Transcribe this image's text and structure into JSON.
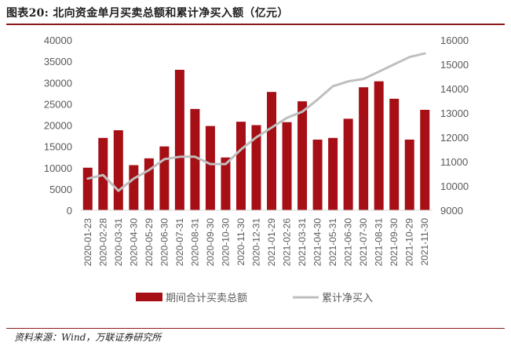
{
  "figure": {
    "title": "图表20:  北向资金单月买卖总额和累计净买入额（亿元）",
    "source": "资料来源：Wind，万联证券研究所"
  },
  "chart_data": {
    "type": "bar",
    "categories": [
      "2020-01-23",
      "2020-02-28",
      "2020-03-31",
      "2020-04-30",
      "2020-05-29",
      "2020-06-30",
      "2020-07-31",
      "2020-08-31",
      "2020-09-30",
      "2020-10-30",
      "2020-11-30",
      "2020-12-31",
      "2021-01-29",
      "2021-02-26",
      "2021-03-31",
      "2021-04-30",
      "2021-05-31",
      "2021-06-30",
      "2021-07-30",
      "2021-08-31",
      "2021-09-30",
      "2021-10-29",
      "2021-11-30"
    ],
    "series": [
      {
        "name": "期间合计买卖总额",
        "type": "bar",
        "axis": "left",
        "color": "#a50f15",
        "values": [
          10000,
          17000,
          18800,
          10600,
          12200,
          15000,
          33000,
          23800,
          19800,
          12400,
          20800,
          20000,
          27800,
          20700,
          25600,
          16600,
          17000,
          21500,
          28900,
          30300,
          26200,
          16600,
          23600
        ]
      },
      {
        "name": "累计净买入",
        "type": "line",
        "axis": "right",
        "color": "#bfbfbf",
        "values": [
          10300,
          10450,
          9800,
          10300,
          10650,
          11100,
          11200,
          11200,
          10900,
          10900,
          11500,
          12000,
          12400,
          12800,
          13050,
          13550,
          14100,
          14300,
          14400,
          14700,
          15000,
          15300,
          15450
        ]
      }
    ],
    "y_left": {
      "min": 0,
      "max": 40000,
      "ticks": [
        0,
        5000,
        10000,
        15000,
        20000,
        25000,
        30000,
        35000,
        40000
      ]
    },
    "y_right": {
      "min": 9000,
      "max": 16000,
      "ticks": [
        9000,
        10000,
        11000,
        12000,
        13000,
        14000,
        15000,
        16000
      ]
    },
    "grid": false,
    "legend": "bottom"
  }
}
